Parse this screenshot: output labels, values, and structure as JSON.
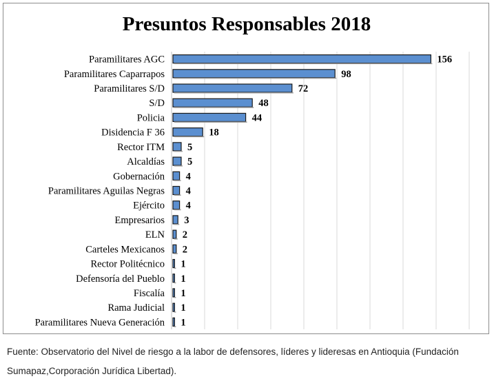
{
  "chart_data": {
    "type": "bar",
    "orientation": "horizontal",
    "title": "Presuntos Responsables 2018",
    "categories": [
      "Paramilitares AGC",
      "Paramilitares Caparrapos",
      "Paramilitares S/D",
      "S/D",
      "Policia",
      "Disidencia F 36",
      "Rector ITM",
      "Alcaldías",
      "Gobernación",
      "Paramilitares Aguilas Negras",
      "Ejército",
      "Empresarios",
      "ELN",
      "Carteles Mexicanos",
      "Rector Politécnico",
      "Defensoría del Pueblo",
      "Fiscalía",
      "Rama Judicial",
      "Paramilitares Nueva Generación"
    ],
    "values": [
      156,
      98,
      72,
      48,
      44,
      18,
      5,
      5,
      4,
      4,
      4,
      3,
      2,
      2,
      1,
      1,
      1,
      1,
      1
    ],
    "xlim": [
      0,
      180
    ],
    "grid": "vertical",
    "bar_color": "#5b8fd0",
    "bar_edge_color": "#1a1a1a",
    "xlabel": "",
    "ylabel": ""
  },
  "source": {
    "text": "Fuente: Observatorio del Nivel de riesgo a la labor de defensores, líderes y lideresas en Antioquia (Fundación Sumapaz,Corporación Jurídica Libertad)."
  }
}
